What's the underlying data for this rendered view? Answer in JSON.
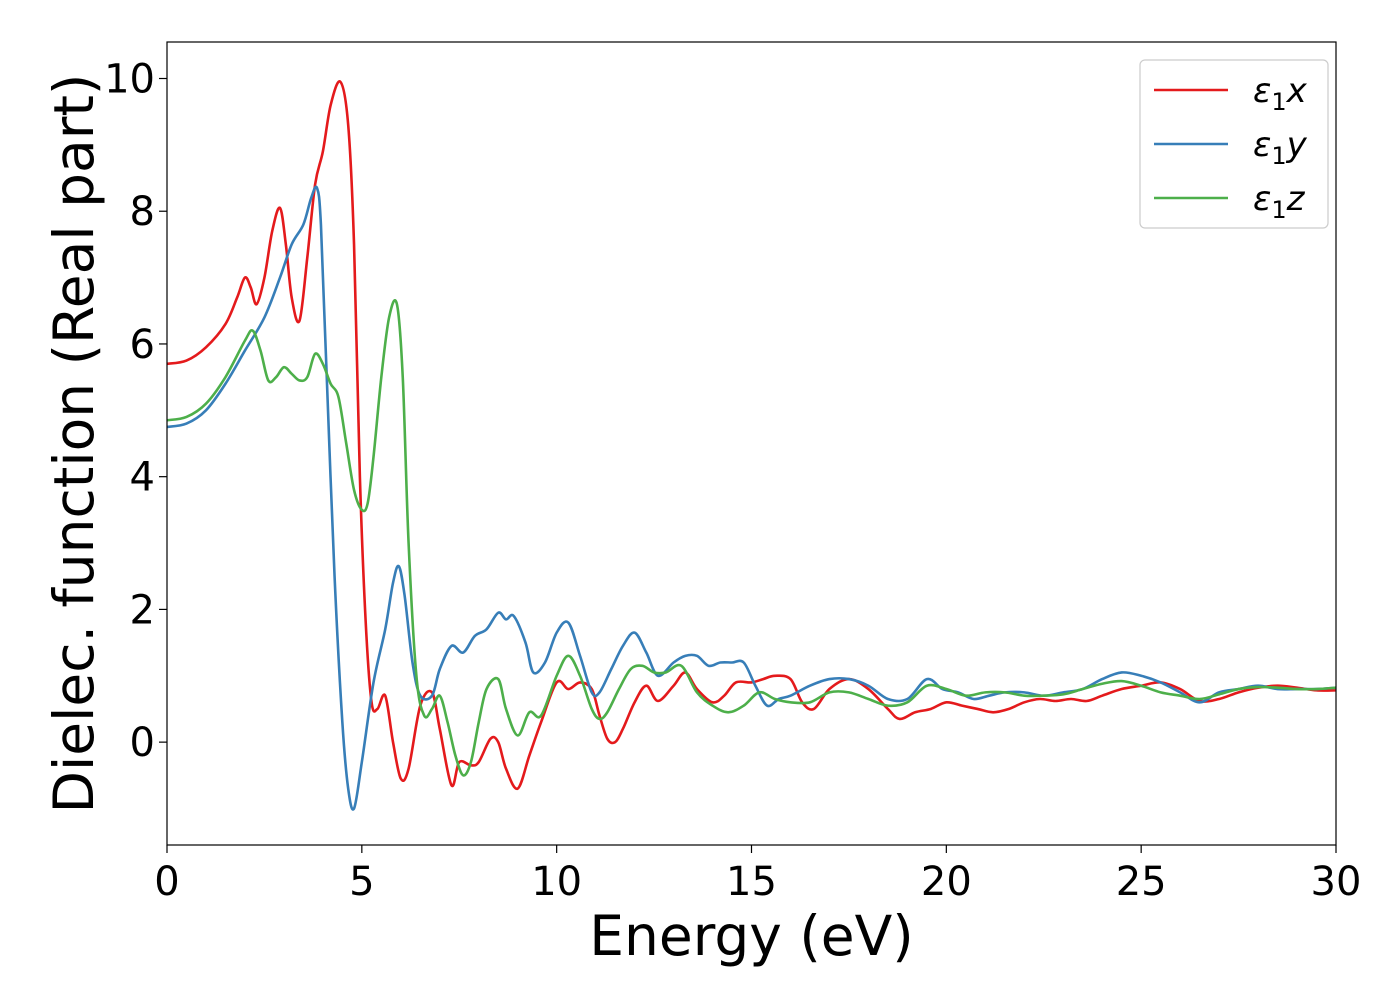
{
  "chart_data": {
    "type": "line",
    "xlabel": "Energy (eV)",
    "ylabel": "Dielec. function (Real part)",
    "xlim": [
      0,
      30
    ],
    "ylim": [
      -1.55,
      10.55
    ],
    "xticks": [
      0,
      5,
      10,
      15,
      20,
      25,
      30
    ],
    "xtick_labels": [
      "0",
      "5",
      "10",
      "15",
      "20",
      "25",
      "30"
    ],
    "yticks": [
      0,
      2,
      4,
      6,
      8,
      10
    ],
    "ytick_labels": [
      "0",
      "2",
      "4",
      "6",
      "8",
      "10"
    ],
    "grid": false,
    "legend_position": "top-right",
    "series": [
      {
        "name": "ε1x",
        "legend_main": "ε",
        "legend_sub": "1",
        "legend_suffix": "x",
        "color": "#e41a1c",
        "x": [
          0,
          0.5,
          1.0,
          1.5,
          1.8,
          2.0,
          2.15,
          2.3,
          2.5,
          2.7,
          2.9,
          3.05,
          3.2,
          3.4,
          3.6,
          3.8,
          4.0,
          4.2,
          4.45,
          4.65,
          4.8,
          4.95,
          5.1,
          5.25,
          5.4,
          5.6,
          5.8,
          6.0,
          6.2,
          6.5,
          6.8,
          7.0,
          7.3,
          7.5,
          7.8,
          8.0,
          8.3,
          8.5,
          8.7,
          9.0,
          9.3,
          9.6,
          10.0,
          10.3,
          10.6,
          10.9,
          11.1,
          11.3,
          11.5,
          11.7,
          12.0,
          12.3,
          12.6,
          13.0,
          13.3,
          13.6,
          14.0,
          14.3,
          14.6,
          15.0,
          15.3,
          15.6,
          16.0,
          16.3,
          16.6,
          17.0,
          17.5,
          18.0,
          18.5,
          18.8,
          19.2,
          19.6,
          20.0,
          20.4,
          20.8,
          21.2,
          21.6,
          22.0,
          22.4,
          22.8,
          23.2,
          23.6,
          24.0,
          24.5,
          25.0,
          25.5,
          26.0,
          26.5,
          27.0,
          27.5,
          28.0,
          28.5,
          29.0,
          29.5,
          30.0
        ],
        "y": [
          5.7,
          5.75,
          5.95,
          6.3,
          6.7,
          7.0,
          6.85,
          6.6,
          7.0,
          7.7,
          8.05,
          7.5,
          6.7,
          6.35,
          7.3,
          8.4,
          8.9,
          9.6,
          9.95,
          9.3,
          7.5,
          4.0,
          1.8,
          0.6,
          0.5,
          0.7,
          0.0,
          -0.55,
          -0.4,
          0.55,
          0.75,
          0.2,
          -0.65,
          -0.3,
          -0.35,
          -0.3,
          0.05,
          0.0,
          -0.4,
          -0.7,
          -0.2,
          0.3,
          0.9,
          0.8,
          0.9,
          0.8,
          0.4,
          0.05,
          0.0,
          0.2,
          0.6,
          0.85,
          0.62,
          0.85,
          1.05,
          0.8,
          0.6,
          0.7,
          0.9,
          0.9,
          0.95,
          1.0,
          0.95,
          0.6,
          0.5,
          0.8,
          0.95,
          0.8,
          0.5,
          0.35,
          0.45,
          0.5,
          0.6,
          0.55,
          0.5,
          0.45,
          0.5,
          0.6,
          0.65,
          0.62,
          0.65,
          0.62,
          0.7,
          0.8,
          0.85,
          0.9,
          0.8,
          0.62,
          0.65,
          0.75,
          0.82,
          0.85,
          0.82,
          0.78,
          0.78
        ]
      },
      {
        "name": "ε1y",
        "legend_main": "ε",
        "legend_sub": "1",
        "legend_suffix": "y",
        "color": "#377eb8",
        "x": [
          0,
          0.5,
          1.0,
          1.5,
          2.0,
          2.5,
          2.9,
          3.2,
          3.5,
          3.7,
          3.85,
          3.95,
          4.1,
          4.3,
          4.5,
          4.65,
          4.8,
          5.0,
          5.3,
          5.6,
          5.8,
          5.95,
          6.1,
          6.3,
          6.5,
          6.8,
          7.0,
          7.3,
          7.6,
          7.9,
          8.2,
          8.5,
          8.7,
          8.9,
          9.2,
          9.4,
          9.7,
          10.0,
          10.3,
          10.6,
          10.9,
          11.1,
          11.4,
          11.7,
          12.0,
          12.3,
          12.6,
          13.0,
          13.3,
          13.6,
          13.9,
          14.2,
          14.5,
          14.8,
          15.1,
          15.4,
          15.7,
          16.0,
          16.5,
          17.0,
          17.5,
          18.0,
          18.5,
          19.0,
          19.5,
          19.9,
          20.3,
          20.7,
          21.1,
          21.5,
          22.0,
          22.5,
          23.0,
          23.5,
          24.0,
          24.5,
          25.0,
          25.5,
          26.0,
          26.5,
          27.0,
          27.5,
          28.0,
          28.5,
          29.0,
          29.5,
          30.0
        ],
        "y": [
          4.75,
          4.8,
          5.0,
          5.4,
          5.9,
          6.4,
          7.0,
          7.5,
          7.8,
          8.2,
          8.35,
          7.8,
          5.5,
          2.5,
          0.3,
          -0.7,
          -1.0,
          -0.3,
          0.9,
          1.7,
          2.4,
          2.65,
          2.2,
          1.2,
          0.7,
          0.7,
          1.1,
          1.45,
          1.35,
          1.6,
          1.7,
          1.95,
          1.85,
          1.9,
          1.5,
          1.05,
          1.2,
          1.65,
          1.8,
          1.3,
          0.75,
          0.75,
          1.1,
          1.45,
          1.65,
          1.35,
          1.0,
          1.2,
          1.3,
          1.3,
          1.15,
          1.2,
          1.2,
          1.2,
          0.85,
          0.55,
          0.65,
          0.7,
          0.85,
          0.95,
          0.95,
          0.85,
          0.65,
          0.65,
          0.95,
          0.8,
          0.75,
          0.65,
          0.7,
          0.75,
          0.75,
          0.7,
          0.75,
          0.8,
          0.95,
          1.05,
          1.0,
          0.9,
          0.75,
          0.6,
          0.75,
          0.8,
          0.85,
          0.8,
          0.8,
          0.8,
          0.82
        ]
      },
      {
        "name": "ε1z",
        "legend_main": "ε",
        "legend_sub": "1",
        "legend_suffix": "z",
        "color": "#4daf4a",
        "x": [
          0,
          0.5,
          1.0,
          1.5,
          2.0,
          2.2,
          2.4,
          2.6,
          2.8,
          3.0,
          3.2,
          3.4,
          3.6,
          3.8,
          4.0,
          4.2,
          4.4,
          4.6,
          4.8,
          5.0,
          5.15,
          5.3,
          5.5,
          5.7,
          5.9,
          6.05,
          6.2,
          6.4,
          6.6,
          6.8,
          7.0,
          7.2,
          7.4,
          7.6,
          7.8,
          8.0,
          8.2,
          8.5,
          8.7,
          9.0,
          9.3,
          9.6,
          10.0,
          10.3,
          10.6,
          10.9,
          11.1,
          11.3,
          11.6,
          11.9,
          12.2,
          12.5,
          12.8,
          13.2,
          13.6,
          14.0,
          14.4,
          14.8,
          15.2,
          15.6,
          16.0,
          16.5,
          17.0,
          17.5,
          18.0,
          18.5,
          19.0,
          19.5,
          20.0,
          20.5,
          21.0,
          21.5,
          22.0,
          22.5,
          23.0,
          23.5,
          24.0,
          24.5,
          25.0,
          25.5,
          26.0,
          26.5,
          27.0,
          27.5,
          28.0,
          28.5,
          29.0,
          29.5,
          30.0
        ],
        "y": [
          4.85,
          4.9,
          5.1,
          5.5,
          6.05,
          6.2,
          5.9,
          5.45,
          5.5,
          5.65,
          5.55,
          5.45,
          5.5,
          5.85,
          5.7,
          5.4,
          5.2,
          4.5,
          3.8,
          3.5,
          3.6,
          4.3,
          5.5,
          6.4,
          6.6,
          5.5,
          3.0,
          1.0,
          0.4,
          0.5,
          0.7,
          0.3,
          -0.2,
          -0.5,
          -0.3,
          0.3,
          0.8,
          0.95,
          0.5,
          0.1,
          0.45,
          0.4,
          1.0,
          1.3,
          1.0,
          0.5,
          0.35,
          0.45,
          0.8,
          1.1,
          1.15,
          1.05,
          1.05,
          1.15,
          0.75,
          0.55,
          0.45,
          0.55,
          0.75,
          0.65,
          0.6,
          0.6,
          0.75,
          0.75,
          0.65,
          0.55,
          0.6,
          0.85,
          0.8,
          0.7,
          0.75,
          0.75,
          0.7,
          0.7,
          0.72,
          0.8,
          0.88,
          0.92,
          0.85,
          0.75,
          0.7,
          0.65,
          0.72,
          0.8,
          0.83,
          0.82,
          0.8,
          0.8,
          0.82
        ]
      }
    ]
  }
}
